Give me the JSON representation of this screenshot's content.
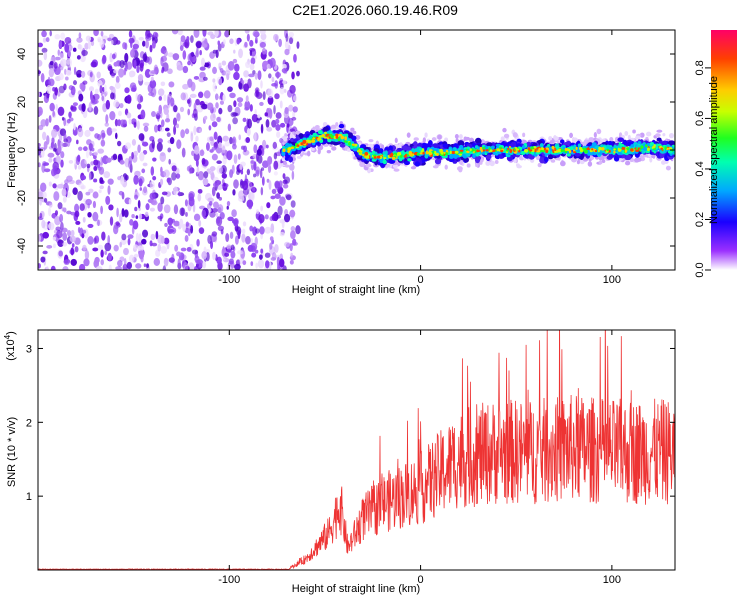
{
  "title": "C2E1.2026.060.19.46.R09",
  "colors": {
    "snr_line": "#ee3333",
    "scatter_noise": "#7a1fe0",
    "axis": "#000000"
  },
  "chart_data": [
    {
      "type": "heatmap",
      "name": "spectrogram",
      "xlabel": "Height of straight line (km)",
      "ylabel": "Frequency (Hz)",
      "xlim": [
        -200,
        133
      ],
      "ylim": [
        -50,
        50
      ],
      "xticks": [
        -100,
        0,
        100
      ],
      "yticks": [
        -40,
        -20,
        0,
        20,
        40
      ],
      "colorbar": {
        "label": "Normalized spectral amplitude",
        "range": [
          0.0,
          0.95
        ],
        "ticks": [
          "0.0",
          "0.2",
          "0.4",
          "0.6",
          "0.8"
        ]
      },
      "noise_region_x": [
        -200,
        -67
      ],
      "signal_trace": [
        {
          "x": -70,
          "f": 0
        },
        {
          "x": -60,
          "f": 3
        },
        {
          "x": -50,
          "f": 6
        },
        {
          "x": -40,
          "f": 5
        },
        {
          "x": -35,
          "f": 2
        },
        {
          "x": -30,
          "f": -2
        },
        {
          "x": -20,
          "f": -3
        },
        {
          "x": -10,
          "f": -2
        },
        {
          "x": 0,
          "f": -1
        },
        {
          "x": 20,
          "f": -1
        },
        {
          "x": 40,
          "f": 0
        },
        {
          "x": 60,
          "f": 0
        },
        {
          "x": 80,
          "f": 0
        },
        {
          "x": 100,
          "f": 0
        },
        {
          "x": 120,
          "f": 1
        },
        {
          "x": 133,
          "f": 0
        }
      ]
    },
    {
      "type": "line",
      "name": "snr",
      "xlabel": "Height of straight line (km)",
      "ylabel": "SNR (10 * v/v)",
      "yscale_label": "(x10",
      "yscale_exp": "4",
      "yscale_close": ")",
      "xlim": [
        -200,
        133
      ],
      "ylim": [
        0,
        3.25
      ],
      "xticks": [
        -100,
        0,
        100
      ],
      "yticks": [
        1,
        2,
        3
      ],
      "envelope": [
        {
          "x": -200,
          "y": 0.0
        },
        {
          "x": -70,
          "y": 0.0
        },
        {
          "x": -60,
          "y": 0.15
        },
        {
          "x": -48,
          "y": 0.5
        },
        {
          "x": -42,
          "y": 0.9
        },
        {
          "x": -38,
          "y": 0.3
        },
        {
          "x": -30,
          "y": 0.7
        },
        {
          "x": -20,
          "y": 0.9
        },
        {
          "x": -10,
          "y": 1.0
        },
        {
          "x": 0,
          "y": 1.1
        },
        {
          "x": 10,
          "y": 1.3
        },
        {
          "x": 20,
          "y": 1.5
        },
        {
          "x": 40,
          "y": 1.6
        },
        {
          "x": 60,
          "y": 1.6
        },
        {
          "x": 80,
          "y": 1.65
        },
        {
          "x": 100,
          "y": 1.6
        },
        {
          "x": 120,
          "y": 1.6
        },
        {
          "x": 133,
          "y": 1.6
        }
      ]
    }
  ]
}
